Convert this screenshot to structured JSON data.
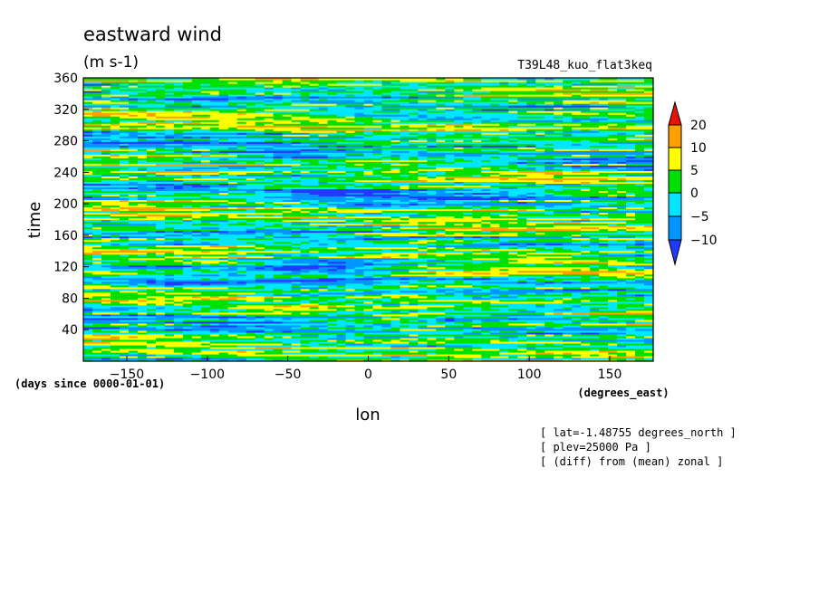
{
  "chart_data": {
    "type": "heatmap",
    "title": "eastward wind",
    "units": "(m s-1)",
    "experiment": "T39L48_kuo_flat3keq",
    "xlabel": "lon",
    "xunits": "(degrees_east)",
    "ylabel": "time",
    "yunits": "(days since 0000-01-01)",
    "xlim": [
      -177,
      177
    ],
    "ylim": [
      0,
      360
    ],
    "x_ticks": [
      -150,
      -100,
      -50,
      0,
      50,
      100,
      150
    ],
    "y_ticks": [
      40,
      80,
      120,
      160,
      200,
      240,
      280,
      320,
      360
    ],
    "notes": [
      "[ lat=-1.48755 degrees_north ]",
      "[ plev=25000 Pa ]",
      "[ (diff) from (mean) zonal ]"
    ],
    "colorbar": {
      "levels": [
        -10,
        -5,
        0,
        5,
        10,
        20
      ],
      "labels": [
        "20",
        "10",
        "5",
        "0",
        "−5",
        "−10"
      ],
      "colors": [
        "#1e3cff",
        "#0096ff",
        "#00e6ff",
        "#00e000",
        "#ffff00",
        "#ffa000",
        "#e61400"
      ]
    }
  }
}
